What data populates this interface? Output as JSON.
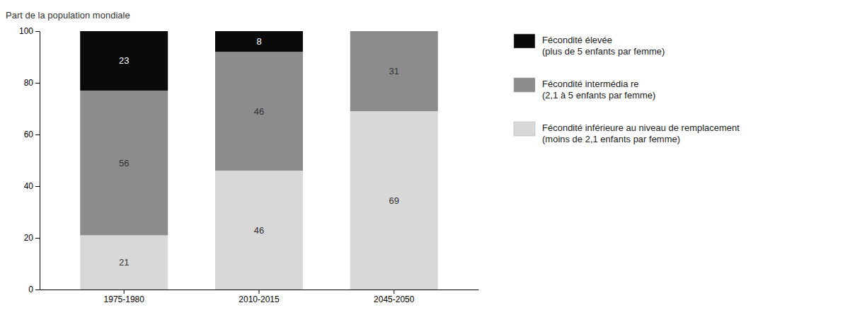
{
  "chart_data": {
    "type": "bar",
    "stacked": true,
    "data_labels": true,
    "grid": false,
    "legend": "right",
    "ylabel": "Part de la population mondiale",
    "categories": [
      "1975-1980",
      "2010-2015",
      "2045-2050"
    ],
    "series": [
      {
        "name": "Fécondité inférieure au niveau de remplacement\n(moins de 2,1 enfants par femme)",
        "color": "#d8d8d8",
        "values": [
          21,
          46,
          69
        ]
      },
      {
        "name": "Fécondité intermédia re\n(2,1 à 5 enfants par femme)",
        "color": "#8c8c8c",
        "values": [
          56,
          46,
          31
        ]
      },
      {
        "name": "Fécondité élevée\n(plus de 5 enfants par femme)",
        "color": "#0a0a0a",
        "values": [
          23,
          8,
          0
        ]
      }
    ],
    "ylim": [
      0,
      100
    ],
    "yticks": [
      0,
      20,
      40,
      60,
      80,
      100
    ]
  }
}
